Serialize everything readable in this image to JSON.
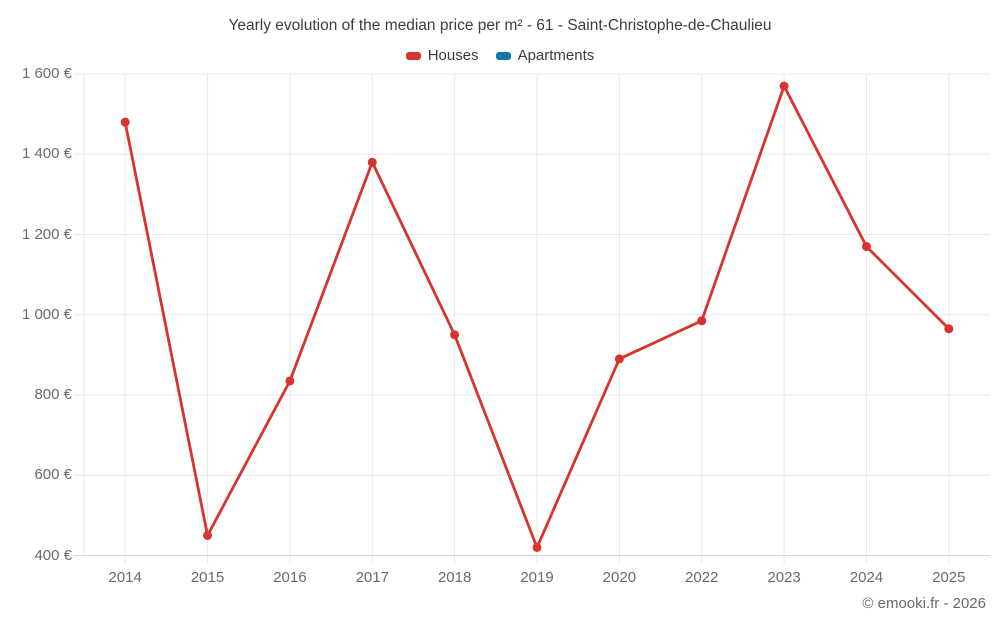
{
  "title": "Yearly evolution of the median price per m² - 61 - Saint-Christophe-de-Chaulieu",
  "footer": "© emooki.fr - 2026",
  "colors": {
    "houses": "#d7342e",
    "apartments": "#1777a3",
    "gridline": "#e8e8e8",
    "axis_line": "#d9d9d9",
    "title_text": "#3d3d3d",
    "tick_text": "#6a6a6a"
  },
  "chart_data": {
    "type": "line",
    "title": "Yearly evolution of the median price per m² - 61 - Saint-Christophe-de-Chaulieu",
    "categories": [
      "2014",
      "2015",
      "2016",
      "2017",
      "2018",
      "2019",
      "2020",
      "2022",
      "2023",
      "2024",
      "2025"
    ],
    "series": [
      {
        "name": "Houses",
        "color": "#d7342e",
        "values": [
          1480,
          450,
          835,
          1380,
          950,
          420,
          890,
          985,
          1570,
          1170,
          965
        ]
      },
      {
        "name": "Apartments",
        "color": "#1777a3",
        "values": []
      }
    ],
    "yticks": [
      "1 600 €",
      "1 400 €",
      "1 200 €",
      "1 000 €",
      "800 €",
      "600 €",
      "400 €"
    ],
    "ytick_values": [
      1600,
      1400,
      1200,
      1000,
      800,
      600,
      400
    ],
    "ylim": [
      400,
      1600
    ],
    "xlabel": "",
    "ylabel": "",
    "grid": true,
    "legend_position": "top",
    "note": "No data points shown for Apartments series; year 2021 absent from x-axis"
  }
}
